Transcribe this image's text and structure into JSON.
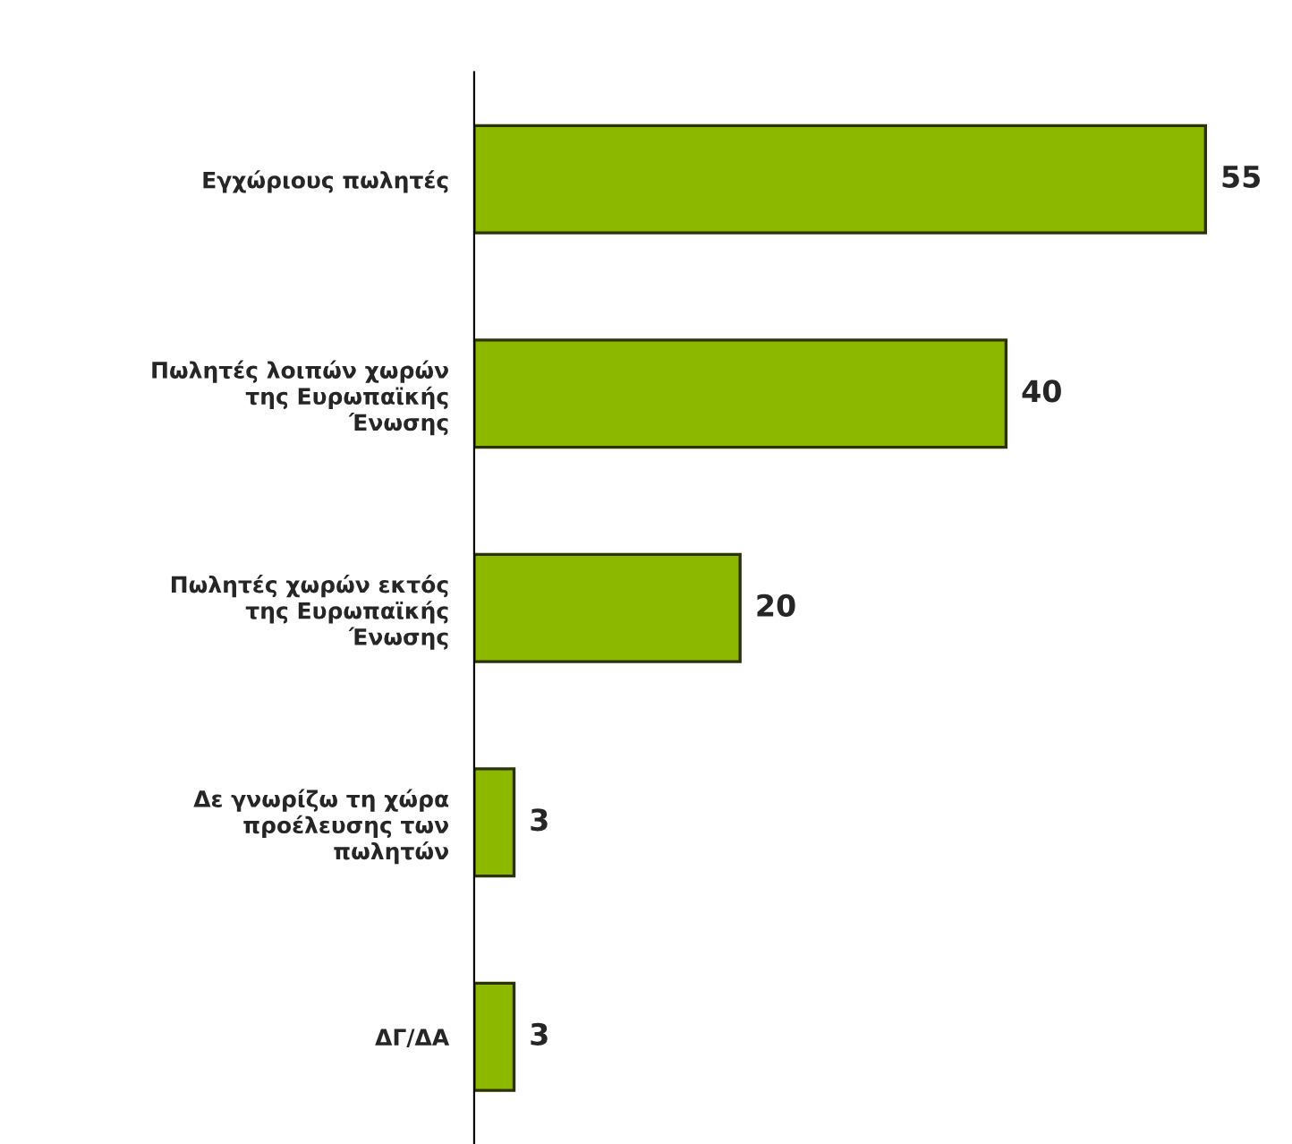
{
  "chart_data": {
    "type": "bar",
    "orientation": "horizontal",
    "categories": [
      "Εγχώριους πωλητές",
      "Πωλητές λοιπών χωρών\nτης Ευρωπαϊκής\nΈνωσης",
      "Πωλητές χωρών εκτός\nτης Ευρωπαϊκής\nΈνωσης",
      "Δε γνωρίζω τη χώρα\nπροέλευσης των\nπωλητών",
      "ΔΓ/ΔΑ"
    ],
    "values": [
      55,
      40,
      20,
      3,
      3
    ],
    "color": "#8cb800",
    "data_labels": true,
    "grid": false,
    "legend": false
  }
}
